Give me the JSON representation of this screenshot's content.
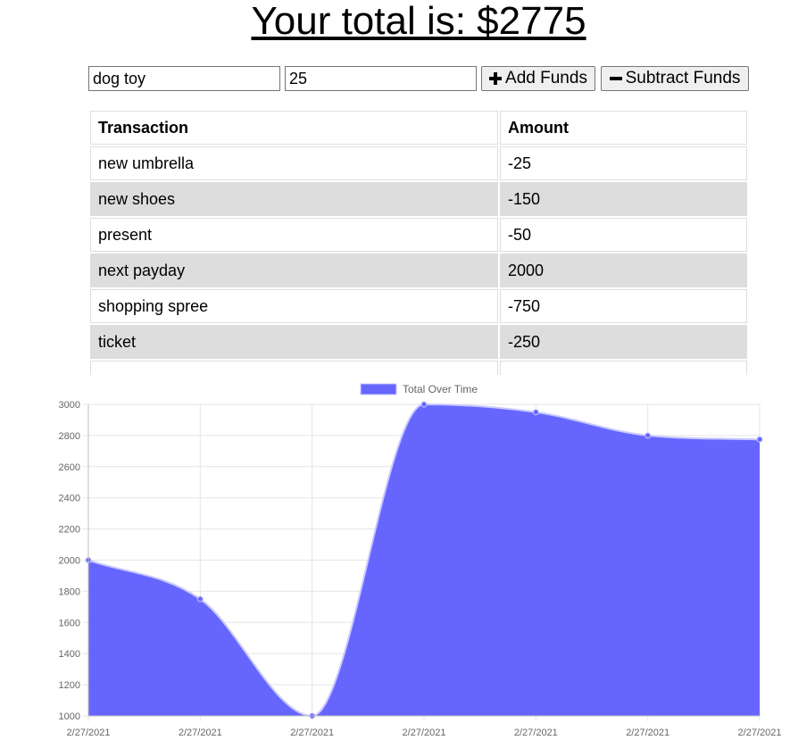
{
  "header": {
    "title": "Your total is: $2775"
  },
  "form": {
    "name_value": "dog toy",
    "amount_value": "25",
    "add_label": "Add Funds",
    "subtract_label": "Subtract Funds"
  },
  "table": {
    "headers": [
      "Transaction",
      "Amount"
    ],
    "rows": [
      {
        "name": "new umbrella",
        "amount": "-25"
      },
      {
        "name": "new shoes",
        "amount": "-150"
      },
      {
        "name": "present",
        "amount": "-50"
      },
      {
        "name": "next payday",
        "amount": "2000"
      },
      {
        "name": "shopping spree",
        "amount": "-750"
      },
      {
        "name": "ticket",
        "amount": "-250"
      }
    ]
  },
  "chart_data": {
    "type": "area",
    "legend": "Total Over Time",
    "legend_position": "top",
    "fill_color": "#6666ff",
    "x": [
      "2/27/2021",
      "2/27/2021",
      "2/27/2021",
      "2/27/2021",
      "2/27/2021",
      "2/27/2021",
      "2/27/2021"
    ],
    "series": [
      {
        "name": "Total Over Time",
        "values": [
          2000,
          1750,
          1000,
          3000,
          2950,
          2800,
          2775
        ]
      }
    ],
    "ylim": [
      1000,
      3000
    ],
    "yticks": [
      1000,
      1200,
      1400,
      1600,
      1800,
      2000,
      2200,
      2400,
      2600,
      2800,
      3000
    ],
    "grid": true
  }
}
